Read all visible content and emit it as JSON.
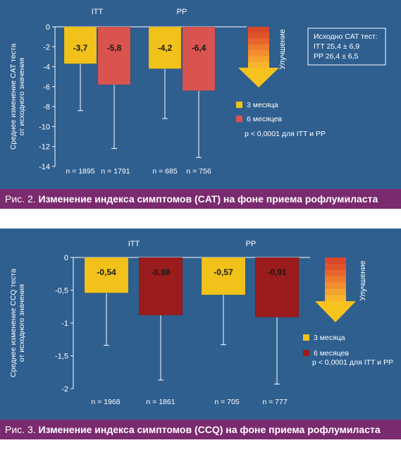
{
  "colors": {
    "background": "#2f5f8f",
    "caption_bg": "#7a2a6e",
    "bar_3m": "#f2c21a",
    "bar_6m_fig2": "#d9534f",
    "bar_6m_fig3": "#9b1c1c",
    "text": "#ffffff",
    "label_dark": "#1a1a1a"
  },
  "figures": [
    {
      "caption_prefix": "Рис. 2.",
      "caption_title": "Изменение индекса симптомов (CAT) на фоне приема рофлумиласта",
      "ylabel_line1": "Среднее изменение CAT теста",
      "ylabel_line2": "от исходного значения",
      "improvement_label": "Улучшение",
      "legend": [
        "3 месяца",
        "6 месяцев"
      ],
      "p_value": "p < 0,0001 для ITT и PP",
      "info_box": [
        "Исходно CAT тест:",
        "ITT 25,4 ± 6,9",
        "PP 26,4 ± 6,5"
      ]
    },
    {
      "caption_prefix": "Рис. 3.",
      "caption_title": "Изменение индекса симптомов (CCQ) на фоне приема рофлумиласта",
      "ylabel_line1": "Среднее изменение CCQ теста",
      "ylabel_line2": "от исходного значения",
      "improvement_label": "Улучшение",
      "legend": [
        "3 месяца",
        "6 месяцев"
      ],
      "p_value": "p < 0,0001 для ITT и PP"
    }
  ],
  "chart_data": [
    {
      "type": "bar",
      "groups": [
        "ITT",
        "PP"
      ],
      "series": [
        {
          "name": "3 месяца",
          "values": [
            -3.7,
            -4.2
          ],
          "labels": [
            "-3,7",
            "-4,2"
          ],
          "error_low": [
            -8.4,
            -9.2
          ]
        },
        {
          "name": "6 месяцев",
          "values": [
            -5.8,
            -6.4
          ],
          "labels": [
            "-5,8",
            "-6,4"
          ],
          "error_low": [
            -12.2,
            -13.1
          ]
        }
      ],
      "n_labels": [
        "n = 1895",
        "n = 1791",
        "n = 685",
        "n = 756"
      ],
      "ylim": [
        -14,
        0
      ],
      "yticks": [
        0,
        -2,
        -4,
        -6,
        -8,
        -10,
        -12,
        -14
      ],
      "ytick_labels": [
        "0",
        "-2",
        "-4",
        "-6",
        "-8",
        "-10",
        "-12",
        "-14"
      ]
    },
    {
      "type": "bar",
      "groups": [
        "ITT",
        "PP"
      ],
      "series": [
        {
          "name": "3 месяца",
          "values": [
            -0.54,
            -0.57
          ],
          "labels": [
            "-0,54",
            "-0,57"
          ],
          "error_low": [
            -1.34,
            -1.33
          ]
        },
        {
          "name": "6 месяцев",
          "values": [
            -0.88,
            -0.91
          ],
          "labels": [
            "-0,88",
            "-0,91"
          ],
          "error_low": [
            -1.87,
            -1.93
          ]
        }
      ],
      "n_labels": [
        "n = 1968",
        "n = 1861",
        "n = 705",
        "n = 777"
      ],
      "ylim": [
        -2,
        0
      ],
      "yticks": [
        0,
        -0.5,
        -1,
        -1.5,
        -2
      ],
      "ytick_labels": [
        "0",
        "-0,5",
        "-1",
        "-1,5",
        "-2"
      ]
    }
  ]
}
